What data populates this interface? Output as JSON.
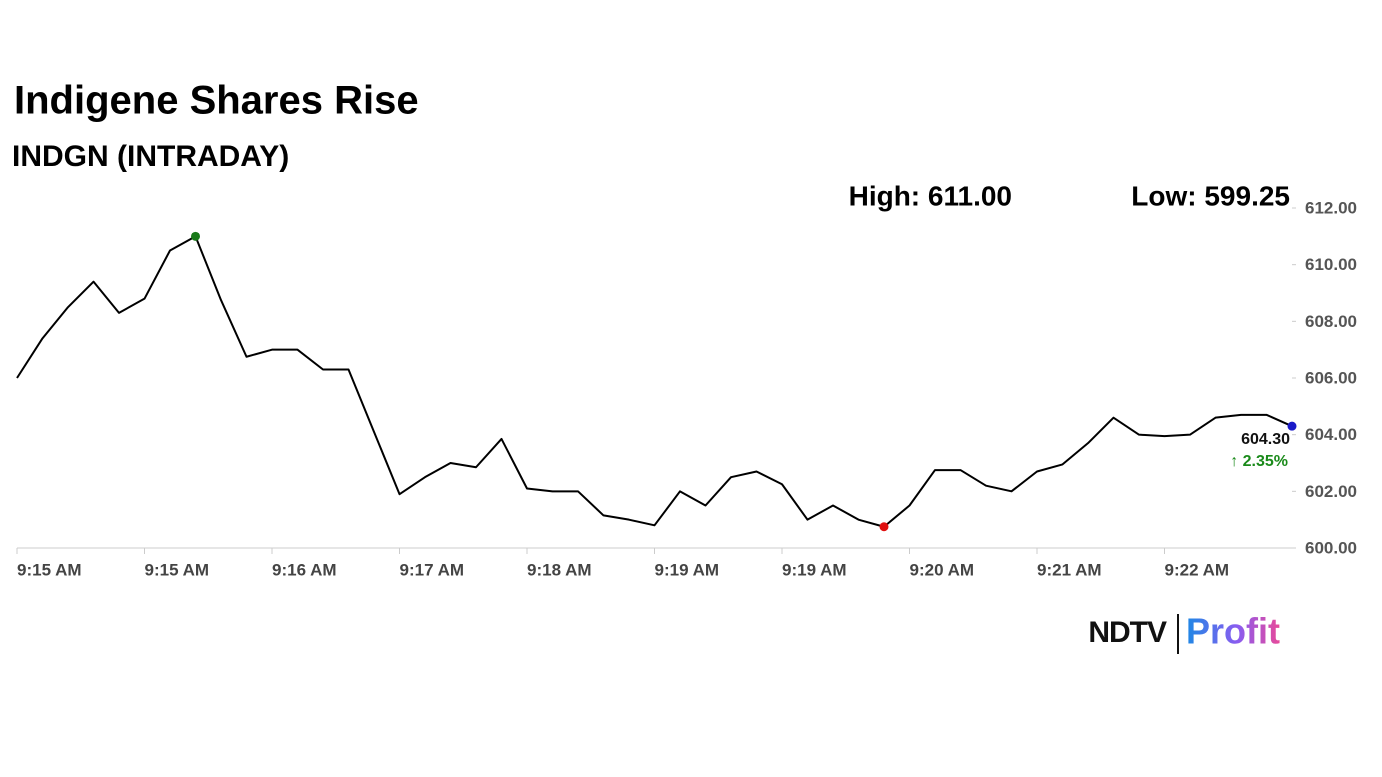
{
  "chart_data": {
    "type": "line",
    "title": "Indigene Shares Rise",
    "subtitle": "INDGN (INTRADAY)",
    "high_label": "High: 611.00",
    "low_label": "Low: 599.25",
    "last_label": "604.30",
    "change_label": "↑ 2.35%",
    "categories": [
      "9:15 AM",
      null,
      null,
      null,
      null,
      "9:15 AM",
      null,
      null,
      null,
      null,
      "9:16 AM",
      null,
      null,
      null,
      null,
      "9:17 AM",
      null,
      null,
      null,
      null,
      "9:18 AM",
      null,
      null,
      null,
      null,
      "9:19 AM",
      null,
      null,
      null,
      null,
      "9:19 AM",
      null,
      null,
      null,
      null,
      "9:20 AM",
      null,
      null,
      null,
      null,
      "9:21 AM",
      null,
      null,
      null,
      null,
      "9:22 AM",
      null,
      null,
      null,
      null,
      null
    ],
    "values": [
      606.0,
      607.4,
      608.5,
      609.4,
      608.3,
      608.8,
      610.5,
      611.0,
      608.75,
      606.75,
      607.0,
      607.0,
      606.3,
      606.3,
      604.1,
      601.9,
      602.5,
      603.0,
      602.85,
      603.85,
      602.1,
      602.0,
      602.0,
      601.15,
      601.0,
      600.8,
      602.0,
      601.5,
      602.5,
      602.7,
      602.25,
      601.0,
      601.5,
      601.0,
      600.75,
      601.5,
      602.75,
      602.75,
      602.2,
      602.0,
      602.7,
      602.95,
      603.7,
      604.6,
      604.0,
      603.95,
      604.0,
      604.6,
      604.7,
      604.7,
      604.3
    ],
    "color": "#000000",
    "high_color": "#1a7a1a",
    "low_color": "#e01010",
    "last_color": "#1a1ac8",
    "change_color": "#1a8a1a",
    "ylim": [
      600,
      612
    ],
    "yticks": [
      {
        "value": 600,
        "label": "600.00"
      },
      {
        "value": 602,
        "label": "602.00"
      },
      {
        "value": 604,
        "label": "604.00"
      },
      {
        "value": 606,
        "label": "606.00"
      },
      {
        "value": 608,
        "label": "608.00"
      },
      {
        "value": 610,
        "label": "610.00"
      },
      {
        "value": 612,
        "label": "612.00"
      }
    ]
  },
  "logo": {
    "left": "NDTV",
    "right": "Profit"
  }
}
